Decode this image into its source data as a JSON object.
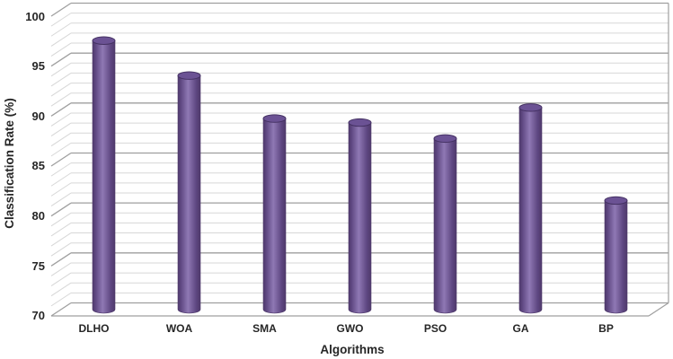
{
  "chart_data": {
    "type": "bar",
    "variant": "3d-cylinder-column",
    "title": "",
    "xlabel": "Algorithms",
    "ylabel": "Classification Rate (%)",
    "categories": [
      "DLHO",
      "WOA",
      "SMA",
      "GWO",
      "PSO",
      "GA",
      "BP"
    ],
    "values": [
      96.9,
      93.4,
      89.1,
      88.7,
      87.1,
      90.2,
      80.9
    ],
    "ylim": [
      70,
      100
    ],
    "y_major_step": 5,
    "y_minor_step": 1,
    "y_tick_labels": [
      "70",
      "75",
      "80",
      "85",
      "90",
      "95",
      "100"
    ],
    "grid": "on",
    "legend": "none",
    "colors": {
      "background": "#ffffff",
      "bar_edge": "#4f3a6b",
      "bar_shade": "#5d4680",
      "bar_mid": "#8f78b4",
      "bar_top_fill": "#6b5294",
      "bar_top_stroke": "#443162",
      "grid_major": "#9f9f9f",
      "grid_minor": "#d7d7d7",
      "axis_text": "#262626"
    }
  }
}
